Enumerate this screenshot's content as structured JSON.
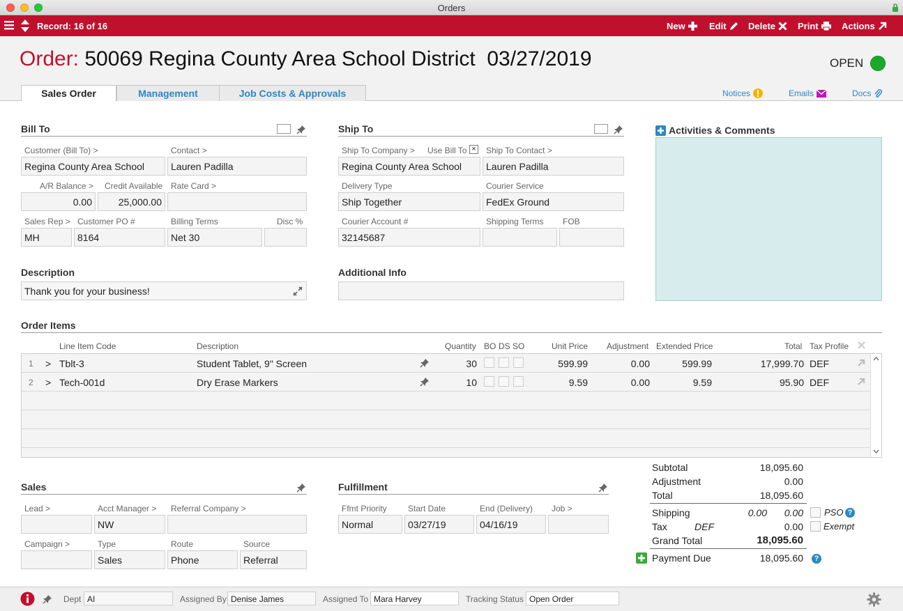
{
  "window": {
    "title": "Orders"
  },
  "toolbar": {
    "record": "Record: 16 of 16",
    "new": "New",
    "edit": "Edit",
    "delete": "Delete",
    "print": "Print",
    "actions": "Actions"
  },
  "header": {
    "label": "Order:",
    "title": "50069 Regina County Area School District  03/27/2019",
    "status": "OPEN",
    "status_color": "#1aaa2a"
  },
  "tabs": [
    {
      "label": "Sales Order",
      "active": true
    },
    {
      "label": "Management",
      "active": false
    },
    {
      "label": "Job Costs & Approvals",
      "active": false
    }
  ],
  "links": {
    "notices": "Notices",
    "emails": "Emails",
    "docs": "Docs"
  },
  "bill_to": {
    "heading": "Bill To",
    "customer_label": "Customer (Bill To) >",
    "customer": "Regina County Area School",
    "contact_label": "Contact >",
    "contact": "Lauren Padilla",
    "ar_balance_label": "A/R Balance >",
    "ar_balance": "0.00",
    "credit_label": "Credit Available",
    "credit": "25,000.00",
    "rate_card_label": "Rate Card >",
    "rate_card": "",
    "sales_rep_label": "Sales Rep >",
    "sales_rep": "MH",
    "customer_po_label": "Customer PO #",
    "customer_po": "8164",
    "billing_terms_label": "Billing Terms",
    "billing_terms": "Net 30",
    "disc_label": "Disc %",
    "disc": ""
  },
  "ship_to": {
    "heading": "Ship To",
    "company_label": "Ship To Company >",
    "company": "Regina County Area School",
    "use_bill_to_label": "Use Bill To",
    "use_bill_to_mark": "×",
    "contact_label": "Ship To Contact >",
    "contact": "Lauren Padilla",
    "delivery_type_label": "Delivery Type",
    "delivery_type": "Ship Together",
    "courier_service_label": "Courier Service",
    "courier_service": "FedEx Ground",
    "courier_account_label": "Courier Account #",
    "courier_account": "32145687",
    "shipping_terms_label": "Shipping Terms",
    "shipping_terms": "",
    "fob_label": "FOB",
    "fob": ""
  },
  "activities": {
    "heading": "Activities & Comments"
  },
  "description": {
    "heading": "Description",
    "value": "Thank you for your business!"
  },
  "additional_info": {
    "heading": "Additional Info",
    "value": ""
  },
  "order_items": {
    "heading": "Order Items",
    "columns": {
      "line_item_code": "Line Item Code",
      "description": "Description",
      "quantity": "Quantity",
      "bo": "BO",
      "ds": "DS",
      "so": "SO",
      "unit_price": "Unit Price",
      "adjustment": "Adjustment",
      "extended_price": "Extended Price",
      "total": "Total",
      "tax_profile": "Tax Profile"
    },
    "rows": [
      {
        "num": "1",
        "arrow": ">",
        "code": "Tblt-3",
        "description": "Student Tablet, 9\" Screen",
        "quantity": "30",
        "unit_price": "599.99",
        "adjustment": "0.00",
        "extended_price": "599.99",
        "total": "17,999.70",
        "tax": "DEF"
      },
      {
        "num": "2",
        "arrow": ">",
        "code": "Tech-001d",
        "description": "Dry Erase Markers",
        "quantity": "10",
        "unit_price": "9.59",
        "adjustment": "0.00",
        "extended_price": "9.59",
        "total": "95.90",
        "tax": "DEF"
      }
    ]
  },
  "totals": {
    "subtotal_label": "Subtotal",
    "subtotal": "18,095.60",
    "adjustment_label": "Adjustment",
    "adjustment": "0.00",
    "total_label": "Total",
    "total": "18,095.60",
    "shipping_label": "Shipping",
    "shipping_a": "0.00",
    "shipping_b": "0.00",
    "pso_label": "PSO",
    "tax_label": "Tax",
    "tax_profile": "DEF",
    "tax": "0.00",
    "exempt_label": "Exempt",
    "grand_total_label": "Grand Total",
    "grand_total": "18,095.60",
    "payment_due_label": "Payment Due",
    "payment_due": "18,095.60"
  },
  "sales": {
    "heading": "Sales",
    "lead_label": "Lead >",
    "lead": "",
    "acct_manager_label": "Acct Manager >",
    "acct_manager": "NW",
    "referral_company_label": "Referral Company >",
    "referral_company": "",
    "campaign_label": "Campaign >",
    "campaign": "",
    "type_label": "Type",
    "type": "Sales",
    "route_label": "Route",
    "route": "Phone",
    "source_label": "Source",
    "source": "Referral"
  },
  "fulfillment": {
    "heading": "Fulfillment",
    "priority_label": "Ffmt Priority",
    "priority": "Normal",
    "start_label": "Start Date",
    "start": "03/27/19",
    "end_label": "End (Delivery)",
    "end": "04/16/19",
    "job_label": "Job >",
    "job": ""
  },
  "footer": {
    "dept_label": "Dept",
    "dept": "AI",
    "assigned_by_label": "Assigned By",
    "assigned_by": "Denise James",
    "assigned_to_label": "Assigned To",
    "assigned_to": "Mara Harvey",
    "tracking_label": "Tracking Status",
    "tracking": "Open Order"
  }
}
